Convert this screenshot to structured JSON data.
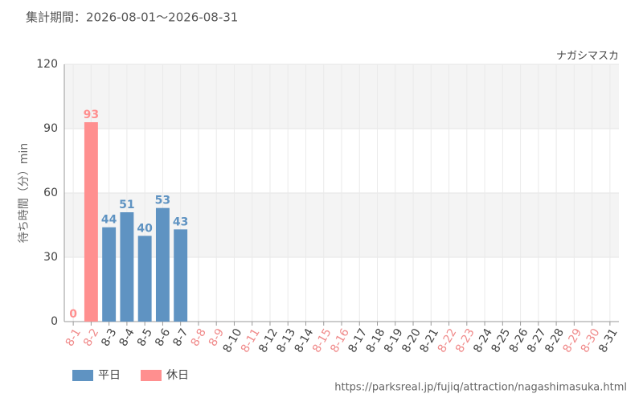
{
  "chart_data": {
    "type": "bar",
    "subtitle": "集計期間：2026-08-01～2026-08-31",
    "attraction": "ナガシマスカ",
    "y_label": "待ち時間（分）min",
    "source": "https://parksreal.jp/fujiq/attraction/nagashimasuka.html",
    "categories": [
      "8-1",
      "8-2",
      "8-3",
      "8-4",
      "8-5",
      "8-6",
      "8-7",
      "8-8",
      "8-9",
      "8-10",
      "8-11",
      "8-12",
      "8-13",
      "8-14",
      "8-15",
      "8-16",
      "8-17",
      "8-18",
      "8-19",
      "8-20",
      "8-21",
      "8-22",
      "8-23",
      "8-24",
      "8-25",
      "8-26",
      "8-27",
      "8-28",
      "8-29",
      "8-30",
      "8-31"
    ],
    "category_label_colors": [
      "#f08a8a",
      "#f08a8a",
      "#444",
      "#444",
      "#444",
      "#444",
      "#444",
      "#f08a8a",
      "#f08a8a",
      "#444",
      "#f08a8a",
      "#444",
      "#444",
      "#444",
      "#f08a8a",
      "#f08a8a",
      "#444",
      "#444",
      "#444",
      "#444",
      "#444",
      "#f08a8a",
      "#f08a8a",
      "#444",
      "#444",
      "#444",
      "#444",
      "#444",
      "#f08a8a",
      "#f08a8a",
      "#444"
    ],
    "series": [
      {
        "name": "平日",
        "color": "#5f93c2",
        "values": [
          null,
          null,
          44,
          51,
          40,
          53,
          43,
          null,
          null,
          null,
          null,
          null,
          null,
          null,
          null,
          null,
          null,
          null,
          null,
          null,
          null,
          null,
          null,
          null,
          null,
          null,
          null,
          null,
          null,
          null,
          null
        ]
      },
      {
        "name": "休日",
        "color": "#ff8f8f",
        "values": [
          0,
          93,
          null,
          null,
          null,
          null,
          null,
          null,
          null,
          null,
          null,
          null,
          null,
          null,
          null,
          null,
          null,
          null,
          null,
          null,
          null,
          null,
          null,
          null,
          null,
          null,
          null,
          null,
          null,
          null,
          null
        ]
      }
    ],
    "ylim": [
      0,
      120
    ],
    "yticks": [
      0,
      30,
      60,
      90,
      120
    ],
    "grid": true
  }
}
